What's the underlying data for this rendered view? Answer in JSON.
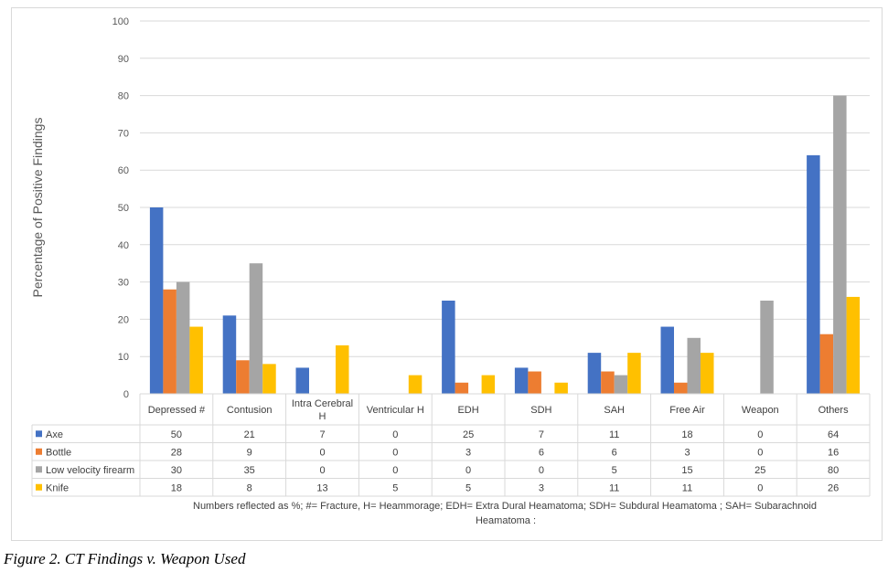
{
  "figure_caption": "Figure 2. CT Findings v. Weapon Used",
  "chart_data": {
    "type": "bar",
    "ylabel": "Percentage of Positive Findings",
    "xlabel": "",
    "ylim": [
      0,
      100
    ],
    "yticks": [
      0,
      10,
      20,
      30,
      40,
      50,
      60,
      70,
      80,
      90,
      100
    ],
    "grid": true,
    "categories": [
      [
        "Depressed #"
      ],
      [
        "Contusion"
      ],
      [
        "Intra Cerebral",
        "H"
      ],
      [
        "Ventricular H"
      ],
      [
        "EDH"
      ],
      [
        "SDH"
      ],
      [
        "SAH"
      ],
      [
        "Free Air"
      ],
      [
        "Weapon"
      ],
      [
        "Others"
      ]
    ],
    "series": [
      {
        "name": "Axe",
        "color": "#4472C4",
        "values": [
          50,
          21,
          7,
          0,
          25,
          7,
          11,
          18,
          0,
          64
        ]
      },
      {
        "name": "Bottle",
        "color": "#ED7D31",
        "values": [
          28,
          9,
          0,
          0,
          3,
          6,
          6,
          3,
          0,
          16
        ]
      },
      {
        "name": "Low velocity firearm",
        "color": "#A5A5A5",
        "values": [
          30,
          35,
          0,
          0,
          0,
          0,
          5,
          15,
          25,
          80
        ]
      },
      {
        "name": "Knife",
        "color": "#FFC000",
        "values": [
          18,
          8,
          13,
          5,
          5,
          3,
          11,
          11,
          0,
          26
        ]
      }
    ],
    "data_table": true,
    "footnote": [
      "Numbers reflected as %; #= Fracture, H= Heammorage; EDH= Extra Dural Heamatoma; SDH= Subdural Heamatoma ; SAH= Subarachnoid",
      "Heamatoma :"
    ]
  }
}
